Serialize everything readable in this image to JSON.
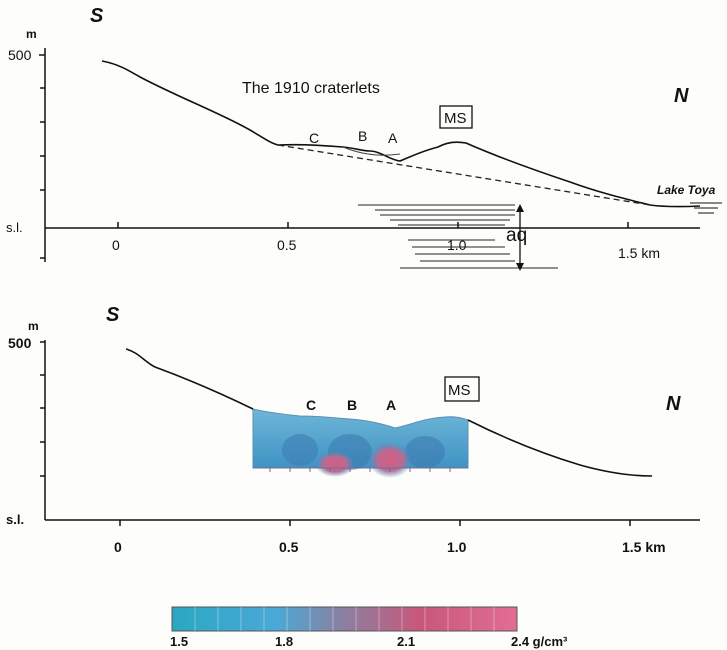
{
  "top_panel": {
    "south_label": "S",
    "north_label": "N",
    "unit_label": "m",
    "y_tick_label": "500",
    "sea_level_label": "s.l.",
    "x_ticks": [
      "0",
      "0.5",
      "1.0",
      "1.5 km"
    ],
    "title": "The 1910 craterlets",
    "craterlet_labels": [
      "C",
      "B",
      "A"
    ],
    "ms_label": "MS",
    "lake_label": "Lake Toya",
    "aq_label": "aq"
  },
  "bottom_panel": {
    "south_label": "S",
    "north_label": "N",
    "unit_label": "m",
    "y_tick_label": "500",
    "sea_level_label": "s.l.",
    "x_ticks": [
      "0",
      "0.5",
      "1.0",
      "1.5 km"
    ],
    "craterlet_labels": [
      "C",
      "B",
      "A"
    ],
    "ms_label": "MS"
  },
  "colorbar": {
    "tick_labels": [
      "1.5",
      "1.8",
      "2.1",
      "2.4 g/cm³"
    ],
    "colors": [
      "#2aa7c2",
      "#4aa9d6",
      "#8c7fa0",
      "#c8587a",
      "#e26d95"
    ]
  }
}
